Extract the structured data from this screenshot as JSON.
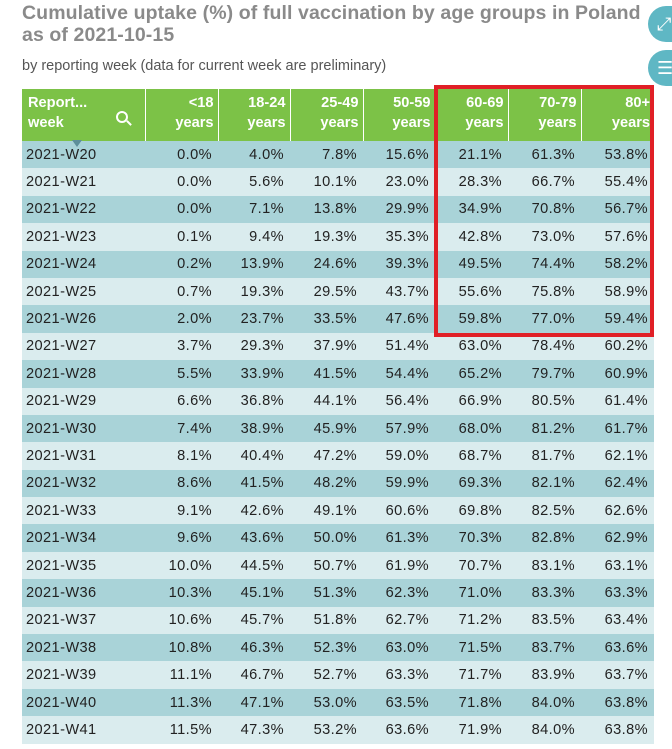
{
  "title": "Cumulative uptake (%) of full vaccination by age groups in Poland as of 2021-10-15",
  "subtitle": "by reporting week (data for current week are preliminary)",
  "icons": {
    "top": "expand-icon",
    "bottom": "menu-icon",
    "header": "search-icon",
    "sort": "sort-down-icon"
  },
  "colors": {
    "header": "#7cc247",
    "row_odd": "#a9d3d8",
    "row_even": "#daecee",
    "highlight": "#e01f26"
  },
  "chart_data": {
    "type": "table",
    "title": "Cumulative uptake (%) of full vaccination by age groups in Poland as of 2021-10-15",
    "subtitle": "by reporting week (data for current week are preliminary)",
    "columns": [
      {
        "line1": "Report...",
        "line2": "week"
      },
      {
        "line1": "<18",
        "line2": "years"
      },
      {
        "line1": "18-24",
        "line2": "years"
      },
      {
        "line1": "25-49",
        "line2": "years"
      },
      {
        "line1": "50-59",
        "line2": "years"
      },
      {
        "line1": "60-69",
        "line2": "years"
      },
      {
        "line1": "70-79",
        "line2": "years"
      },
      {
        "line1": "80+",
        "line2": "years"
      }
    ],
    "highlighted_columns": [
      "60-69 years",
      "70-79 years",
      "80+ years"
    ],
    "highlighted_weeks": [
      "2021-W20",
      "2021-W26"
    ],
    "rows": [
      [
        "2021-W20",
        "0.0%",
        "4.0%",
        "7.8%",
        "15.6%",
        "21.1%",
        "61.3%",
        "53.8%"
      ],
      [
        "2021-W21",
        "0.0%",
        "5.6%",
        "10.1%",
        "23.0%",
        "28.3%",
        "66.7%",
        "55.4%"
      ],
      [
        "2021-W22",
        "0.0%",
        "7.1%",
        "13.8%",
        "29.9%",
        "34.9%",
        "70.8%",
        "56.7%"
      ],
      [
        "2021-W23",
        "0.1%",
        "9.4%",
        "19.3%",
        "35.3%",
        "42.8%",
        "73.0%",
        "57.6%"
      ],
      [
        "2021-W24",
        "0.2%",
        "13.9%",
        "24.6%",
        "39.3%",
        "49.5%",
        "74.4%",
        "58.2%"
      ],
      [
        "2021-W25",
        "0.7%",
        "19.3%",
        "29.5%",
        "43.7%",
        "55.6%",
        "75.8%",
        "58.9%"
      ],
      [
        "2021-W26",
        "2.0%",
        "23.7%",
        "33.5%",
        "47.6%",
        "59.8%",
        "77.0%",
        "59.4%"
      ],
      [
        "2021-W27",
        "3.7%",
        "29.3%",
        "37.9%",
        "51.4%",
        "63.0%",
        "78.4%",
        "60.2%"
      ],
      [
        "2021-W28",
        "5.5%",
        "33.9%",
        "41.5%",
        "54.4%",
        "65.2%",
        "79.7%",
        "60.9%"
      ],
      [
        "2021-W29",
        "6.6%",
        "36.8%",
        "44.1%",
        "56.4%",
        "66.9%",
        "80.5%",
        "61.4%"
      ],
      [
        "2021-W30",
        "7.4%",
        "38.9%",
        "45.9%",
        "57.9%",
        "68.0%",
        "81.2%",
        "61.7%"
      ],
      [
        "2021-W31",
        "8.1%",
        "40.4%",
        "47.2%",
        "59.0%",
        "68.7%",
        "81.7%",
        "62.1%"
      ],
      [
        "2021-W32",
        "8.6%",
        "41.5%",
        "48.2%",
        "59.9%",
        "69.3%",
        "82.1%",
        "62.4%"
      ],
      [
        "2021-W33",
        "9.1%",
        "42.6%",
        "49.1%",
        "60.6%",
        "69.8%",
        "82.5%",
        "62.6%"
      ],
      [
        "2021-W34",
        "9.6%",
        "43.6%",
        "50.0%",
        "61.3%",
        "70.3%",
        "82.8%",
        "62.9%"
      ],
      [
        "2021-W35",
        "10.0%",
        "44.5%",
        "50.7%",
        "61.9%",
        "70.7%",
        "83.1%",
        "63.1%"
      ],
      [
        "2021-W36",
        "10.3%",
        "45.1%",
        "51.3%",
        "62.3%",
        "71.0%",
        "83.3%",
        "63.3%"
      ],
      [
        "2021-W37",
        "10.6%",
        "45.7%",
        "51.8%",
        "62.7%",
        "71.2%",
        "83.5%",
        "63.4%"
      ],
      [
        "2021-W38",
        "10.8%",
        "46.3%",
        "52.3%",
        "63.0%",
        "71.5%",
        "83.7%",
        "63.6%"
      ],
      [
        "2021-W39",
        "11.1%",
        "46.7%",
        "52.7%",
        "63.3%",
        "71.7%",
        "83.9%",
        "63.7%"
      ],
      [
        "2021-W40",
        "11.3%",
        "47.1%",
        "53.0%",
        "63.5%",
        "71.8%",
        "84.0%",
        "63.8%"
      ],
      [
        "2021-W41",
        "11.5%",
        "47.3%",
        "53.2%",
        "63.6%",
        "71.9%",
        "84.0%",
        "63.8%"
      ]
    ]
  }
}
